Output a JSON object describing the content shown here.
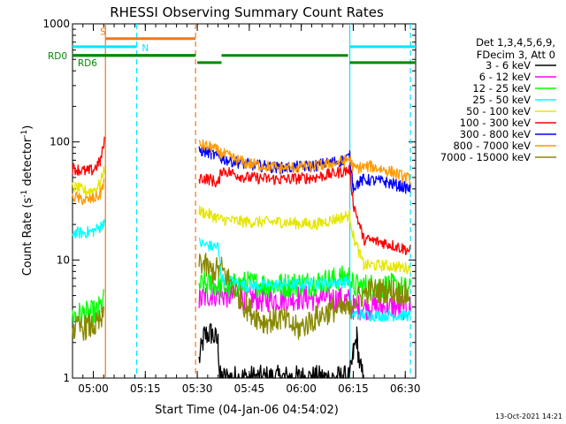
{
  "chart_data": {
    "type": "line",
    "title": "RHESSI Observing Summary Count Rates",
    "xlabel": "Start Time (04-Jan-06 04:54:02)",
    "ylabel_main": "Count Rate (s",
    "ylabel_sup1": "-1",
    "ylabel_mid": " detector",
    "ylabel_sup2": "-1",
    "ylabel_end": ")",
    "footer_date": "13-Oct-2021 14:21",
    "yscale": "log",
    "ylim": [
      1,
      1000
    ],
    "xlim_minutes": [
      0,
      99
    ],
    "x_unit": "minutes after 04:54:02",
    "xticks": [
      {
        "label": "05:00",
        "t": 6
      },
      {
        "label": "05:15",
        "t": 21
      },
      {
        "label": "05:30",
        "t": 36
      },
      {
        "label": "05:45",
        "t": 51
      },
      {
        "label": "06:00",
        "t": 66
      },
      {
        "label": "06:15",
        "t": 81
      },
      {
        "label": "06:30",
        "t": 96
      }
    ],
    "yticks": [
      {
        "label": "1",
        "v": 1
      },
      {
        "label": "10",
        "v": 10
      },
      {
        "label": "100",
        "v": 100
      },
      {
        "label": "1000",
        "v": 1000
      }
    ],
    "legend": {
      "header": [
        "Det 1,3,4,5,6,9,",
        "FDecim 3, Att 0"
      ],
      "placement": "right"
    },
    "flags": [
      {
        "name": "S",
        "color": "#f07818",
        "segments": [
          [
            9.5,
            35.5
          ]
        ],
        "level": 750
      },
      {
        "name": "N",
        "color": "#00e8ff",
        "segments": [
          [
            0,
            18.5
          ],
          [
            80,
            99
          ]
        ],
        "level": 640
      },
      {
        "name": "RD0",
        "color": "#008800",
        "segments": [
          [
            0,
            35.5
          ],
          [
            36,
            43
          ],
          [
            43,
            79.5
          ],
          [
            80,
            99
          ]
        ],
        "level_by_segment": [
          540,
          470,
          540,
          470
        ]
      },
      {
        "name": "RD6",
        "color": "#008800",
        "segments": [
          [
            0,
            35.5
          ]
        ],
        "level": 540
      }
    ],
    "vlines": [
      {
        "t": 9.5,
        "color": "#f07818",
        "style": "solid"
      },
      {
        "t": 18.5,
        "color": "#00e8ff",
        "style": "dashed"
      },
      {
        "t": 35.5,
        "color": "#f07818",
        "style": "dashed"
      },
      {
        "t": 80,
        "color": "#00e8ff",
        "style": "solid"
      },
      {
        "t": 97.5,
        "color": "#00e8ff",
        "style": "dashed"
      }
    ],
    "gaps": [
      [
        9.5,
        36
      ]
    ],
    "series": [
      {
        "name": "3 - 6 keV",
        "color": "#000000",
        "points": [
          [
            36.5,
            1.4
          ],
          [
            38,
            2.3
          ],
          [
            40,
            2.4
          ],
          [
            42,
            2.0
          ],
          [
            42.5,
            1.0
          ],
          [
            80,
            1.0
          ],
          [
            81,
            1.6
          ],
          [
            82,
            2.2
          ],
          [
            83,
            1.2
          ],
          [
            84,
            1.0
          ]
        ]
      },
      {
        "name": "6 - 12 keV",
        "color": "#ff00ff",
        "points": [
          [
            36.5,
            4.5
          ],
          [
            40,
            5.2
          ],
          [
            45,
            5.0
          ],
          [
            55,
            4.6
          ],
          [
            65,
            4.8
          ],
          [
            75,
            4.7
          ],
          [
            80,
            4.5
          ],
          [
            81,
            4.0
          ],
          [
            86,
            4.0
          ],
          [
            92,
            4.0
          ],
          [
            97.5,
            4.0
          ]
        ]
      },
      {
        "name": "12 - 25 keV",
        "color": "#00ff00",
        "points": [
          [
            0,
            3.4
          ],
          [
            4,
            3.5
          ],
          [
            7,
            3.6
          ],
          [
            9,
            4.5
          ],
          [
            36.5,
            6.0
          ],
          [
            40,
            6.4
          ],
          [
            43,
            5.8
          ],
          [
            50,
            6.3
          ],
          [
            60,
            6.1
          ],
          [
            70,
            6.4
          ],
          [
            80,
            7.2
          ],
          [
            81,
            6.0
          ],
          [
            86,
            6.0
          ],
          [
            92,
            6.0
          ],
          [
            97.5,
            5.5
          ]
        ]
      },
      {
        "name": "25 - 50 keV",
        "color": "#00ffff",
        "points": [
          [
            0,
            17
          ],
          [
            3,
            17
          ],
          [
            6,
            17.5
          ],
          [
            8,
            19
          ],
          [
            9.2,
            22
          ],
          [
            36.5,
            14
          ],
          [
            40,
            13
          ],
          [
            42,
            13
          ],
          [
            43,
            7
          ],
          [
            50,
            6
          ],
          [
            60,
            6.2
          ],
          [
            70,
            6.3
          ],
          [
            80,
            6.6
          ],
          [
            80.5,
            3.5
          ],
          [
            86,
            3.4
          ],
          [
            92,
            3.4
          ],
          [
            97.5,
            3.4
          ]
        ]
      },
      {
        "name": "50 - 100 keV",
        "color": "#e6e600",
        "points": [
          [
            0,
            42
          ],
          [
            2,
            40
          ],
          [
            4,
            38
          ],
          [
            6,
            39
          ],
          [
            8,
            44
          ],
          [
            9.2,
            60
          ],
          [
            36.5,
            26
          ],
          [
            40,
            24
          ],
          [
            43,
            22
          ],
          [
            50,
            21
          ],
          [
            60,
            21
          ],
          [
            70,
            20
          ],
          [
            80,
            24
          ],
          [
            81,
            16
          ],
          [
            84,
            9
          ],
          [
            90,
            9
          ],
          [
            97.5,
            8.5
          ]
        ]
      },
      {
        "name": "100 - 300 keV",
        "color": "#ff0000",
        "points": [
          [
            0,
            60
          ],
          [
            2,
            58
          ],
          [
            4,
            56
          ],
          [
            6,
            58
          ],
          [
            8,
            68
          ],
          [
            9.2,
            100
          ],
          [
            36.5,
            50
          ],
          [
            40,
            48
          ],
          [
            42,
            44
          ],
          [
            43,
            58
          ],
          [
            50,
            50
          ],
          [
            60,
            48
          ],
          [
            70,
            50
          ],
          [
            80,
            58
          ],
          [
            81,
            30
          ],
          [
            84,
            15
          ],
          [
            90,
            14
          ],
          [
            97.5,
            12
          ]
        ]
      },
      {
        "name": "300 - 800 keV",
        "color": "#0000ff",
        "points": [
          [
            36.5,
            85
          ],
          [
            40,
            80
          ],
          [
            43,
            72
          ],
          [
            50,
            65
          ],
          [
            60,
            60
          ],
          [
            70,
            63
          ],
          [
            78,
            70
          ],
          [
            80,
            75
          ],
          [
            81,
            42
          ],
          [
            84,
            48
          ],
          [
            90,
            46
          ],
          [
            97.5,
            40
          ]
        ]
      },
      {
        "name": "800 - 7000 keV",
        "color": "#ff9900",
        "points": [
          [
            0,
            35
          ],
          [
            2,
            33
          ],
          [
            4,
            32
          ],
          [
            6,
            33
          ],
          [
            8,
            36
          ],
          [
            9.2,
            48
          ],
          [
            36.5,
            95
          ],
          [
            40,
            90
          ],
          [
            43,
            80
          ],
          [
            50,
            66
          ],
          [
            60,
            60
          ],
          [
            70,
            62
          ],
          [
            78,
            68
          ],
          [
            80,
            72
          ],
          [
            81,
            60
          ],
          [
            86,
            62
          ],
          [
            92,
            56
          ],
          [
            97.5,
            48
          ]
        ]
      },
      {
        "name": "7000 - 15000 keV",
        "color": "#888800",
        "points": [
          [
            0,
            2.6
          ],
          [
            4,
            2.7
          ],
          [
            7,
            2.8
          ],
          [
            9,
            3.2
          ],
          [
            36.5,
            10
          ],
          [
            40,
            8
          ],
          [
            43,
            8.5
          ],
          [
            50,
            4.0
          ],
          [
            55,
            3.0
          ],
          [
            60,
            3.2
          ],
          [
            65,
            2.6
          ],
          [
            70,
            3.2
          ],
          [
            75,
            3.8
          ],
          [
            80,
            3.8
          ],
          [
            81,
            4.5
          ],
          [
            86,
            5.5
          ],
          [
            92,
            5.5
          ],
          [
            97.5,
            5.0
          ]
        ]
      }
    ]
  }
}
